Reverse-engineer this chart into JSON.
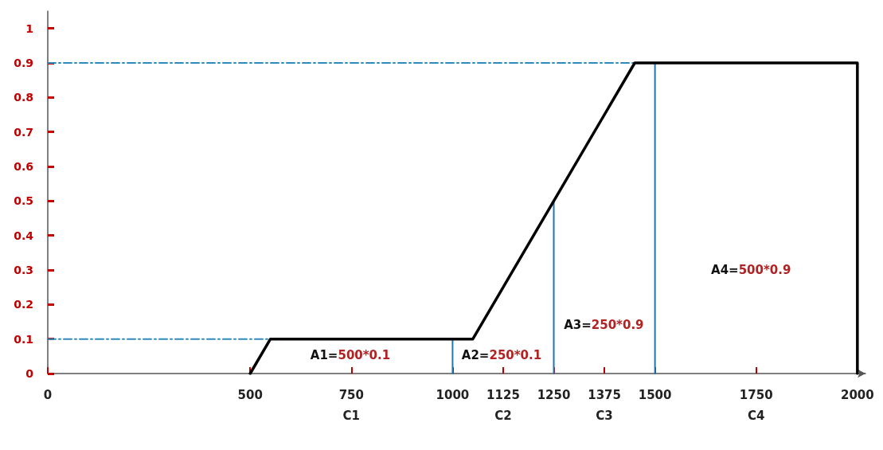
{
  "chart_data": {
    "type": "line",
    "series": [
      {
        "x": [
          500,
          550,
          1050,
          1450,
          2000,
          2000
        ],
        "values": [
          0,
          0.1,
          0.1,
          0.9,
          0.9,
          0
        ],
        "color": "#000000",
        "line_style": "solid"
      },
      {
        "x": [
          0,
          1450
        ],
        "values": [
          0.9,
          0.9
        ],
        "color": "#2e8bc0",
        "line_style": "dashed"
      },
      {
        "x": [
          0,
          550
        ],
        "values": [
          0.1,
          0.1
        ],
        "color": "#2e8bc0",
        "line_style": "dashed"
      },
      {
        "x": [
          1000,
          1000
        ],
        "values": [
          0,
          0.1
        ],
        "color": "#1f77b4",
        "line_style": "solid"
      },
      {
        "x": [
          1250,
          1250
        ],
        "values": [
          0,
          0.5
        ],
        "color": "#1f77b4",
        "line_style": "solid"
      },
      {
        "x": [
          1500,
          1500
        ],
        "values": [
          0,
          0.9
        ],
        "color": "#1f77b4",
        "line_style": "solid"
      }
    ],
    "xlim": [
      0,
      2020
    ],
    "xticks": [
      0,
      500,
      {
        "value": 750,
        "label": "750\nC1"
      },
      1000,
      {
        "value": 1125,
        "label": "1125\nC2"
      },
      1250,
      {
        "value": 1375,
        "label": "1375\nC3"
      },
      1500,
      {
        "value": 1750,
        "label": "1750\nC4"
      },
      2000
    ],
    "ylim": [
      0,
      1.05
    ],
    "yticks": [
      0,
      0.1,
      0.2,
      0.3,
      0.4,
      0.5,
      0.6,
      0.7,
      0.8,
      0.9,
      1
    ],
    "annotations": [
      "A1=500*0.1",
      "A2=250*0.1",
      "A3=250*0.9",
      "A4=500*0.9"
    ],
    "marker": "none",
    "grid": false
  }
}
